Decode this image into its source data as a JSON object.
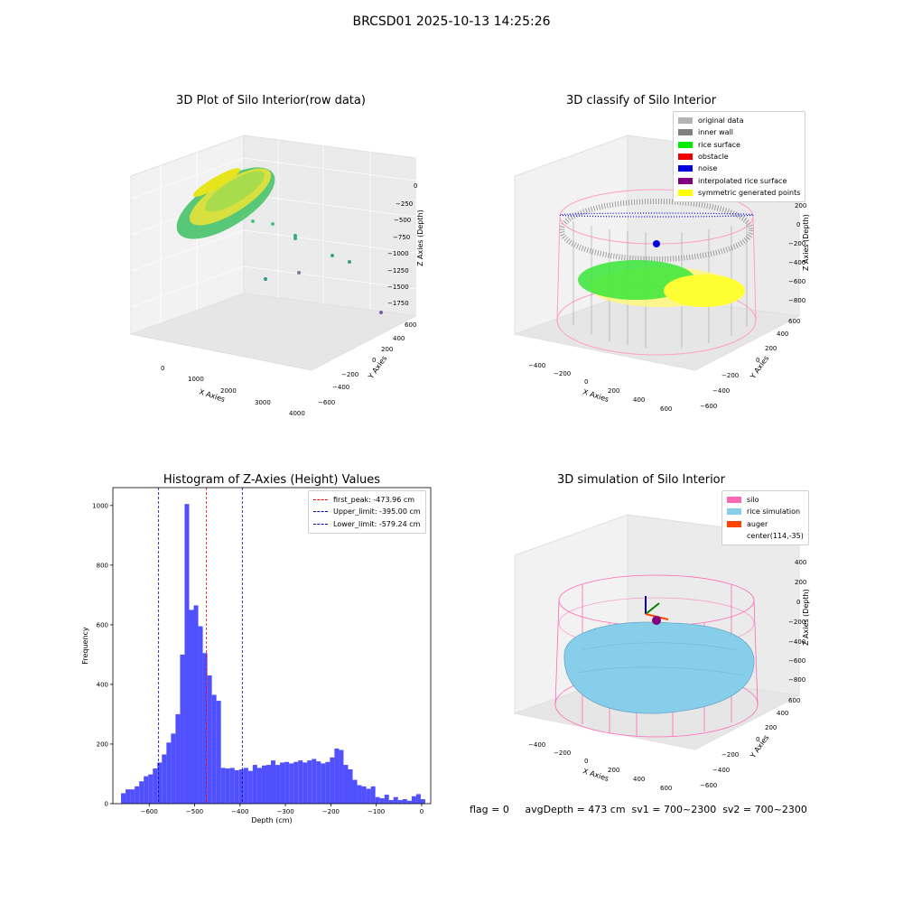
{
  "suptitle": "BRCSD01 2025-10-13 14:25:26",
  "plot1": {
    "title": "3D Plot of Silo Interior(row data)",
    "x_label": "X Axies",
    "y_label": "Y Axies",
    "z_label": "Z Axies (Depth)",
    "x_ticks": [
      "0",
      "1000",
      "2000",
      "3000",
      "4000"
    ],
    "y_ticks": [
      "600",
      "400",
      "200",
      "0",
      "−200",
      "−400",
      "−600"
    ],
    "z_ticks": [
      "0",
      "−250",
      "−500",
      "−750",
      "−1000",
      "−1250",
      "−1500",
      "−1750"
    ]
  },
  "plot2": {
    "title": "3D classify of Silo Interior",
    "x_label": "X Axies",
    "y_label": "Y Axies",
    "z_label": "Z Axies (Depth)",
    "x_ticks": [
      "−400",
      "−200",
      "0",
      "200",
      "400",
      "600"
    ],
    "y_ticks": [
      "600",
      "400",
      "200",
      "0",
      "−200",
      "−400",
      "−600"
    ],
    "z_ticks": [
      "200",
      "0",
      "−200",
      "−400",
      "−600",
      "−800"
    ],
    "legend": [
      {
        "label": "original data",
        "color": "#b4b4b4"
      },
      {
        "label": "inner wall",
        "color": "#808080"
      },
      {
        "label": "rice surface",
        "color": "#00ee00"
      },
      {
        "label": "obstacle",
        "color": "#ee0000"
      },
      {
        "label": "noise",
        "color": "#0000dd"
      },
      {
        "label": "interpolated rice surface",
        "color": "#800080"
      },
      {
        "label": "symmetric generated points",
        "color": "#ffff00"
      }
    ]
  },
  "plot4": {
    "title": "3D simulation of Silo Interior",
    "x_label": "X Axies",
    "y_label": "Y Axies",
    "z_label": "Z Axies (Depth)",
    "x_ticks": [
      "−400",
      "−200",
      "0",
      "200",
      "400",
      "600"
    ],
    "y_ticks": [
      "600",
      "400",
      "200",
      "0",
      "−200",
      "−400",
      "−600"
    ],
    "z_ticks": [
      "400",
      "200",
      "0",
      "−200",
      "−400",
      "−600",
      "−800"
    ],
    "legend": [
      {
        "label": "silo",
        "color": "#ff69b4"
      },
      {
        "label": "rice simulation",
        "color": "#87ceeb"
      },
      {
        "label": "auger",
        "color": "#ff4500"
      },
      {
        "label": "center(114,-35)",
        "color": ""
      }
    ]
  },
  "status_text": "flag = 0     avgDepth = 473 cm  sv1 = 700~2300  sv2 = 700~2300",
  "chart_data": {
    "type": "bar",
    "title": "Histogram of Z-Axies (Height) Values",
    "xlabel": "Depth (cm)",
    "ylabel": "Frequency",
    "xlim": [
      -680,
      20
    ],
    "ylim": [
      0,
      1060
    ],
    "x_ticks": [
      -600,
      -500,
      -400,
      -300,
      -200,
      -100,
      0
    ],
    "x_tick_labels": [
      "−600",
      "−500",
      "−400",
      "−300",
      "−200",
      "−100",
      "0"
    ],
    "y_ticks": [
      0,
      200,
      400,
      600,
      800,
      1000
    ],
    "bar_color": "#5050ff",
    "bin_width": 10,
    "bin_starts": [
      -662,
      -652,
      -642,
      -632,
      -622,
      -612,
      -602,
      -592,
      -582,
      -572,
      -562,
      -552,
      -542,
      -532,
      -522,
      -512,
      -502,
      -492,
      -482,
      -472,
      -462,
      -452,
      -442,
      -432,
      -422,
      -412,
      -402,
      -392,
      -382,
      -372,
      -362,
      -352,
      -342,
      -332,
      -322,
      -312,
      -302,
      -292,
      -282,
      -272,
      -262,
      -252,
      -242,
      -232,
      -222,
      -212,
      -202,
      -192,
      -182,
      -172,
      -162,
      -152,
      -142,
      -132,
      -122,
      -112,
      -102,
      -92,
      -82,
      -72,
      -62,
      -52,
      -42,
      -32,
      -22,
      -12,
      -2
    ],
    "counts": [
      35,
      48,
      48,
      58,
      75,
      92,
      98,
      118,
      138,
      165,
      205,
      235,
      300,
      500,
      1005,
      650,
      665,
      595,
      505,
      430,
      365,
      345,
      120,
      118,
      120,
      112,
      115,
      120,
      110,
      130,
      120,
      128,
      130,
      145,
      130,
      138,
      140,
      135,
      140,
      145,
      138,
      145,
      150,
      142,
      135,
      140,
      155,
      185,
      180,
      130,
      115,
      80,
      62,
      58,
      50,
      58,
      22,
      18,
      30,
      12,
      22,
      12,
      15,
      10,
      25,
      32,
      15
    ],
    "vlines": [
      {
        "label": "first_peak: -473.96 cm",
        "x": -473.96,
        "color": "#ff0000"
      },
      {
        "label": "Upper_limit: -395.00 cm",
        "x": -395.0,
        "color": "#0000a0"
      },
      {
        "label": "Lower_limit: -579.24 cm",
        "x": -579.24,
        "color": "#0000a0"
      }
    ]
  }
}
